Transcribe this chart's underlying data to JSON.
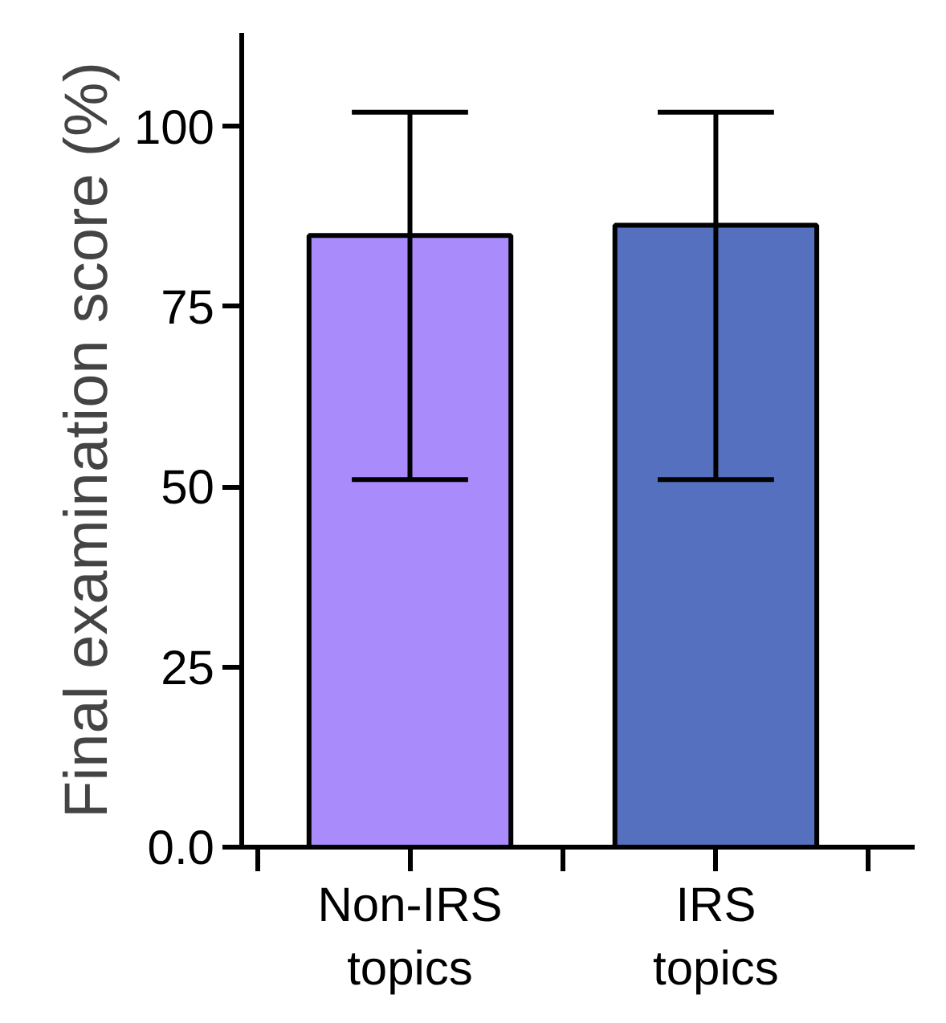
{
  "chart_data": {
    "type": "bar",
    "ylabel": "Final examination score (%)",
    "categories": [
      "Non-IRS\ntopics",
      "IRS\ntopics"
    ],
    "values": [
      84.9,
      86.3
    ],
    "colors": [
      "#a98bfc",
      "#5470bf"
    ],
    "errors": [
      [
        51,
        102
      ],
      [
        51,
        102
      ]
    ],
    "ylim": [
      0,
      113
    ],
    "yticks": [
      {
        "value": 0,
        "label": "0.0"
      },
      25,
      50,
      75,
      100
    ],
    "grid": false
  }
}
